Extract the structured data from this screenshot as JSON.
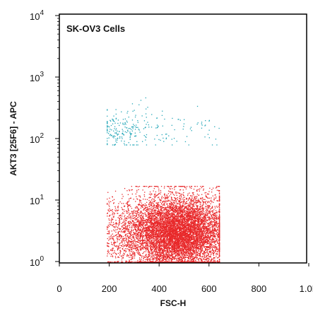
{
  "chart_data": {
    "type": "scatter",
    "title": "",
    "annotation": "SK-OV3 Cells",
    "xlabel": "FSC-H",
    "ylabel": "AKT3 [25F6] - APC",
    "xscale": "linear",
    "yscale": "log",
    "xlim": [
      0,
      1024
    ],
    "ylim": [
      1,
      10000
    ],
    "x_ticks": [
      {
        "value": 0,
        "label": "0"
      },
      {
        "value": 200,
        "label": "200"
      },
      {
        "value": 400,
        "label": "400"
      },
      {
        "value": 600,
        "label": "600"
      },
      {
        "value": 800,
        "label": "800"
      },
      {
        "value": 1000,
        "label": "1.0K"
      }
    ],
    "y_ticks": [
      {
        "value": 1,
        "base": "10",
        "exp": "0"
      },
      {
        "value": 10,
        "base": "10",
        "exp": "1"
      },
      {
        "value": 100,
        "base": "10",
        "exp": "2"
      },
      {
        "value": 1000,
        "base": "10",
        "exp": "3"
      },
      {
        "value": 10000,
        "base": "10",
        "exp": "4"
      }
    ],
    "grid": false,
    "legend": "none",
    "series": [
      {
        "color": "#e8282a",
        "approx_count": 9000,
        "x_range": [
          190,
          640
        ],
        "x_mode": 470,
        "y_range": [
          1,
          17
        ],
        "y_median": 3
      },
      {
        "color": "#25a7b8",
        "approx_count": 260,
        "x_range": [
          190,
          640
        ],
        "x_mode": 260,
        "y_range": [
          80,
          950
        ],
        "y_median": 150
      }
    ]
  }
}
